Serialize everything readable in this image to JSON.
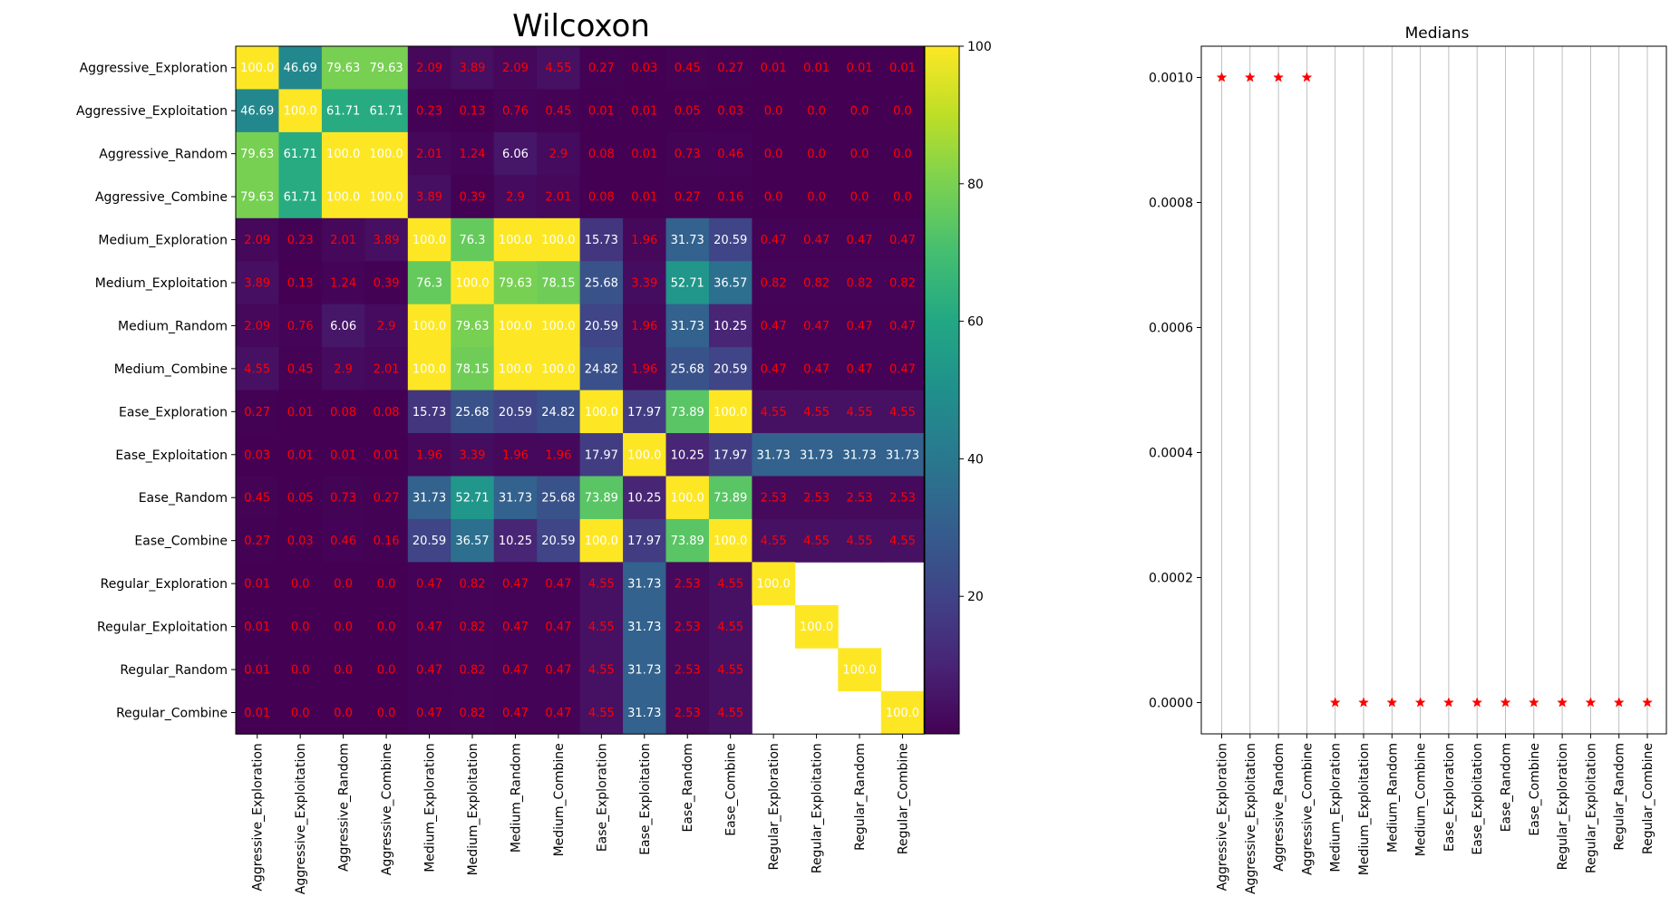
{
  "chart_data": [
    {
      "type": "heatmap",
      "title": "Wilcoxon",
      "labels": [
        "Aggressive_Exploration",
        "Aggressive_Exploitation",
        "Aggressive_Random",
        "Aggressive_Combine",
        "Medium_Exploration",
        "Medium_Exploitation",
        "Medium_Random",
        "Medium_Combine",
        "Ease_Exploration",
        "Ease_Exploitation",
        "Ease_Random",
        "Ease_Combine",
        "Regular_Exploration",
        "Regular_Exploitation",
        "Regular_Random",
        "Regular_Combine"
      ],
      "matrix": [
        [
          "100.0",
          "46.69",
          "79.63",
          "79.63",
          "2.09",
          "3.89",
          "2.09",
          "4.55",
          "0.27",
          "0.03",
          "0.45",
          "0.27",
          "0.01",
          "0.01",
          "0.01",
          "0.01"
        ],
        [
          "46.69",
          "100.0",
          "61.71",
          "61.71",
          "0.23",
          "0.13",
          "0.76",
          "0.45",
          "0.01",
          "0.01",
          "0.05",
          "0.03",
          "0.0",
          "0.0",
          "0.0",
          "0.0"
        ],
        [
          "79.63",
          "61.71",
          "100.0",
          "100.0",
          "2.01",
          "1.24",
          "6.06",
          "2.9",
          "0.08",
          "0.01",
          "0.73",
          "0.46",
          "0.0",
          "0.0",
          "0.0",
          "0.0"
        ],
        [
          "79.63",
          "61.71",
          "100.0",
          "100.0",
          "3.89",
          "0.39",
          "2.9",
          "2.01",
          "0.08",
          "0.01",
          "0.27",
          "0.16",
          "0.0",
          "0.0",
          "0.0",
          "0.0"
        ],
        [
          "2.09",
          "0.23",
          "2.01",
          "3.89",
          "100.0",
          "76.3",
          "100.0",
          "100.0",
          "15.73",
          "1.96",
          "31.73",
          "20.59",
          "0.47",
          "0.47",
          "0.47",
          "0.47"
        ],
        [
          "3.89",
          "0.13",
          "1.24",
          "0.39",
          "76.3",
          "100.0",
          "79.63",
          "78.15",
          "25.68",
          "3.39",
          "52.71",
          "36.57",
          "0.82",
          "0.82",
          "0.82",
          "0.82"
        ],
        [
          "2.09",
          "0.76",
          "6.06",
          "2.9",
          "100.0",
          "79.63",
          "100.0",
          "100.0",
          "20.59",
          "1.96",
          "31.73",
          "10.25",
          "0.47",
          "0.47",
          "0.47",
          "0.47"
        ],
        [
          "4.55",
          "0.45",
          "2.9",
          "2.01",
          "100.0",
          "78.15",
          "100.0",
          "100.0",
          "24.82",
          "1.96",
          "25.68",
          "20.59",
          "0.47",
          "0.47",
          "0.47",
          "0.47"
        ],
        [
          "0.27",
          "0.01",
          "0.08",
          "0.08",
          "15.73",
          "25.68",
          "20.59",
          "24.82",
          "100.0",
          "17.97",
          "73.89",
          "100.0",
          "4.55",
          "4.55",
          "4.55",
          "4.55"
        ],
        [
          "0.03",
          "0.01",
          "0.01",
          "0.01",
          "1.96",
          "3.39",
          "1.96",
          "1.96",
          "17.97",
          "100.0",
          "10.25",
          "17.97",
          "31.73",
          "31.73",
          "31.73",
          "31.73"
        ],
        [
          "0.45",
          "0.05",
          "0.73",
          "0.27",
          "31.73",
          "52.71",
          "31.73",
          "25.68",
          "73.89",
          "10.25",
          "100.0",
          "73.89",
          "2.53",
          "2.53",
          "2.53",
          "2.53"
        ],
        [
          "0.27",
          "0.03",
          "0.46",
          "0.16",
          "20.59",
          "36.57",
          "10.25",
          "20.59",
          "100.0",
          "17.97",
          "73.89",
          "100.0",
          "4.55",
          "4.55",
          "4.55",
          "4.55"
        ],
        [
          "0.01",
          "0.0",
          "0.0",
          "0.0",
          "0.47",
          "0.82",
          "0.47",
          "0.47",
          "4.55",
          "31.73",
          "2.53",
          "4.55",
          "100.0",
          null,
          null,
          null
        ],
        [
          "0.01",
          "0.0",
          "0.0",
          "0.0",
          "0.47",
          "0.82",
          "0.47",
          "0.47",
          "4.55",
          "31.73",
          "2.53",
          "4.55",
          null,
          "100.0",
          null,
          null
        ],
        [
          "0.01",
          "0.0",
          "0.0",
          "0.0",
          "0.47",
          "0.82",
          "0.47",
          "0.47",
          "4.55",
          "31.73",
          "2.53",
          "4.55",
          null,
          null,
          "100.0",
          null
        ],
        [
          "0.01",
          "0.0",
          "0.0",
          "0.0",
          "0.47",
          "0.82",
          "0.47",
          "0.47",
          "4.55",
          "31.73",
          "2.53",
          "4.55",
          null,
          null,
          null,
          "100.0"
        ]
      ],
      "colormap": "viridis",
      "colorbar": {
        "range": [
          0,
          100
        ],
        "ticks": [
          "20",
          "40",
          "60",
          "80",
          "100"
        ]
      },
      "annotation_colors": {
        "high": "#ffffff",
        "low": "#ff0000",
        "threshold": 5
      }
    },
    {
      "type": "scatter",
      "title": "Medians",
      "categories": [
        "Aggressive_Exploration",
        "Aggressive_Exploitation",
        "Aggressive_Random",
        "Aggressive_Combine",
        "Medium_Exploration",
        "Medium_Exploitation",
        "Medium_Random",
        "Medium_Combine",
        "Ease_Exploration",
        "Ease_Exploitation",
        "Ease_Random",
        "Ease_Combine",
        "Regular_Exploration",
        "Regular_Exploitation",
        "Regular_Random",
        "Regular_Combine"
      ],
      "values": [
        0.001,
        0.001,
        0.001,
        0.001,
        0,
        0,
        0,
        0,
        0,
        0,
        0,
        0,
        0,
        0,
        0,
        0
      ],
      "ylim": [
        -5e-05,
        0.00105
      ],
      "yticks": [
        "0.0000",
        "0.0002",
        "0.0004",
        "0.0006",
        "0.0008",
        "0.0010"
      ],
      "marker": "star",
      "marker_color": "#ff0000",
      "xgrid": true
    }
  ]
}
